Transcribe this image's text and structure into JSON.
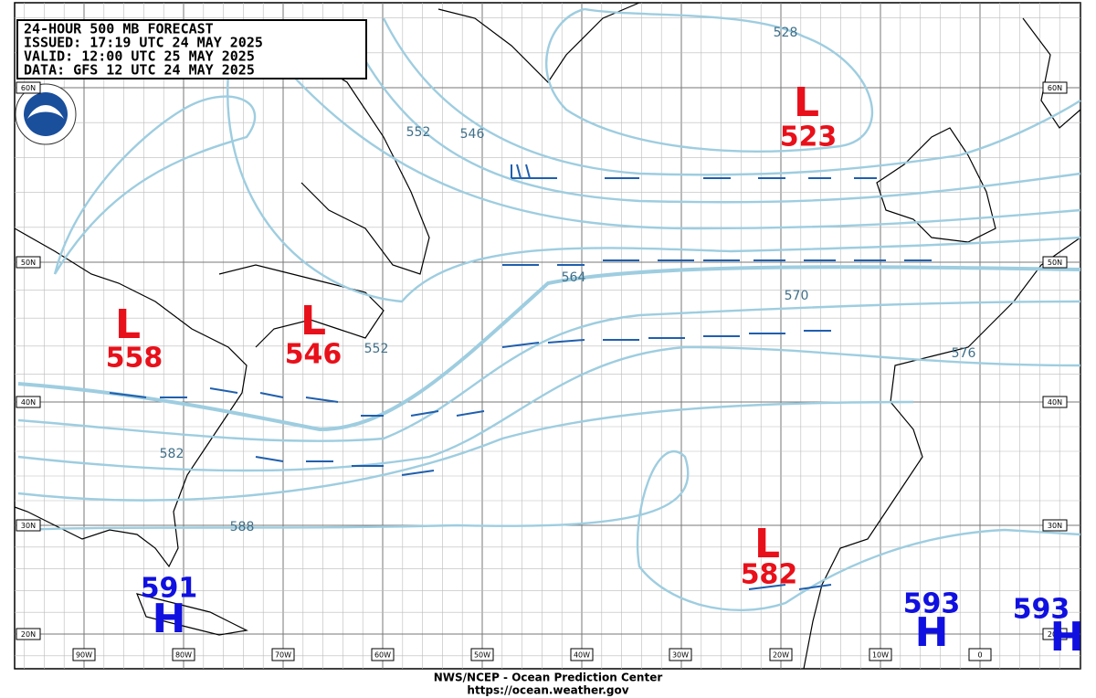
{
  "header": {
    "lines": [
      "24-HOUR 500 MB FORECAST",
      "ISSUED: 17:19 UTC 24 MAY 2025",
      "VALID:  12:00 UTC 25 MAY 2025",
      "DATA:   GFS 12 UTC 24 MAY 2025"
    ]
  },
  "centers": [
    {
      "type": "L",
      "value": 523
    },
    {
      "type": "L",
      "value": 558
    },
    {
      "type": "L",
      "value": 546
    },
    {
      "type": "L",
      "value": 582
    },
    {
      "type": "H",
      "value": 591
    },
    {
      "type": "H",
      "value": 593
    },
    {
      "type": "H",
      "value": 593
    }
  ],
  "contour_labels": [
    528,
    552,
    546,
    564,
    570,
    576,
    552,
    582,
    588
  ],
  "lat_labels": [
    "60N",
    "50N",
    "40N",
    "30N",
    "20N"
  ],
  "lon_labels": [
    "90W",
    "80W",
    "70W",
    "60W",
    "50W",
    "40W",
    "30W",
    "20W",
    "10W",
    "0"
  ],
  "footer": [
    "NWS/NCEP - Ocean Prediction Center",
    "https://ocean.weather.gov"
  ]
}
